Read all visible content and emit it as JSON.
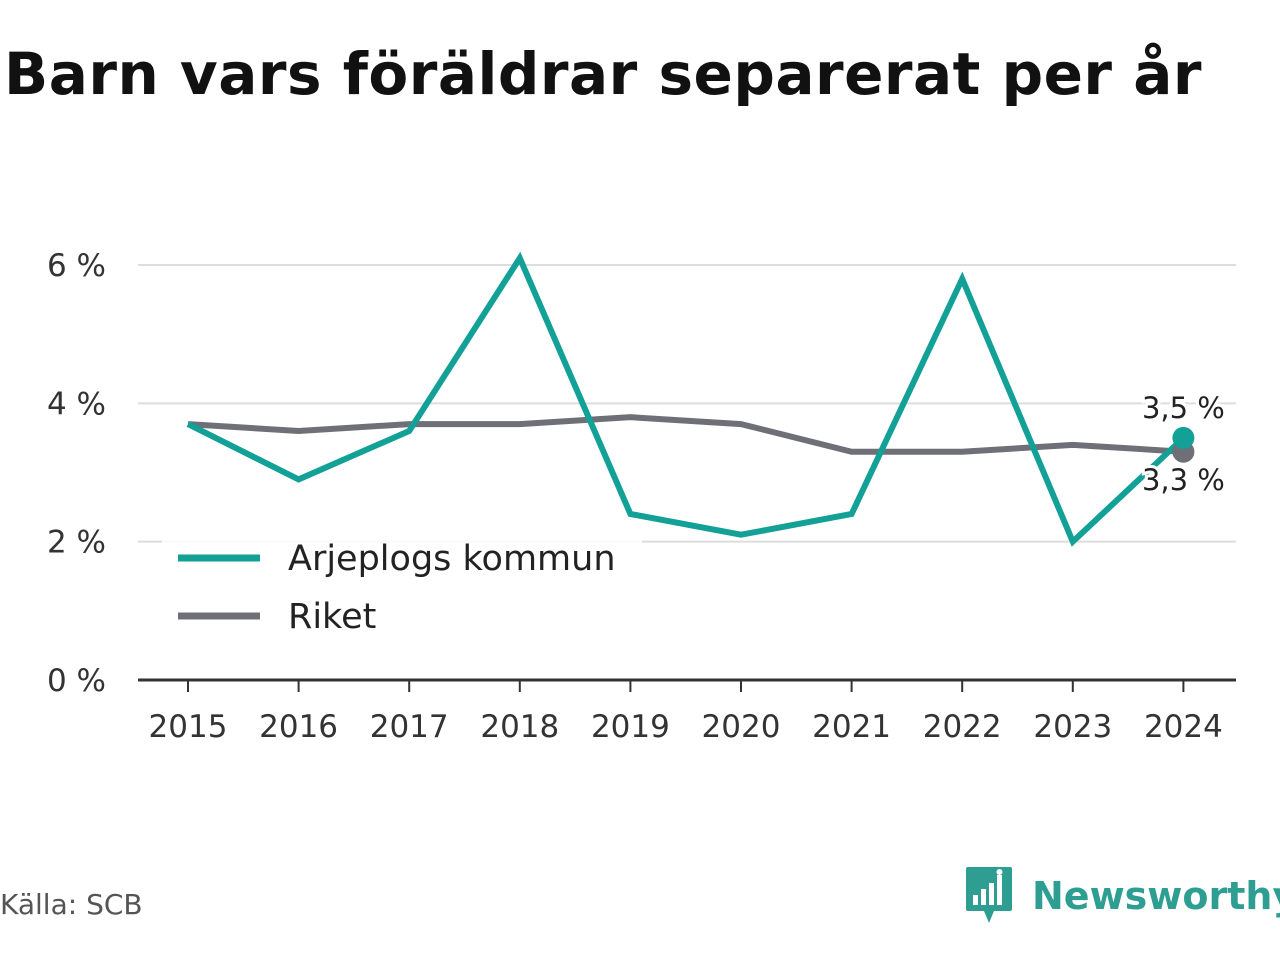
{
  "title": "Barn vars föräldrar separerat per år",
  "source": "Källa: SCB",
  "brand": "Newsworthy",
  "colors": {
    "accent": "#13a197",
    "national": "#6f6f78",
    "grid": "#dddddd",
    "axis": "#333333",
    "text": "#333333",
    "brand": "#2e9e93"
  },
  "chart_data": {
    "type": "line",
    "categories": [
      "2015",
      "2016",
      "2017",
      "2018",
      "2019",
      "2020",
      "2021",
      "2022",
      "2023",
      "2024"
    ],
    "series": [
      {
        "name": "Arjeplogs kommun",
        "values": [
          3.7,
          2.9,
          3.6,
          6.1,
          2.4,
          2.1,
          2.4,
          5.8,
          2.0,
          3.5
        ],
        "color": "#13a197"
      },
      {
        "name": "Riket",
        "values": [
          3.7,
          3.6,
          3.7,
          3.7,
          3.8,
          3.7,
          3.3,
          3.3,
          3.4,
          3.3
        ],
        "color": "#6f6f78"
      }
    ],
    "end_labels": [
      "3,5 %",
      "3,3 %"
    ],
    "yticks": [
      0,
      2,
      4,
      6
    ],
    "ytick_labels": [
      "0 %",
      "2 %",
      "4 %",
      "6 %"
    ],
    "ylim": [
      0,
      6
    ],
    "grid": true,
    "legend_position": "bottom-left",
    "xlabel": "",
    "ylabel": ""
  }
}
